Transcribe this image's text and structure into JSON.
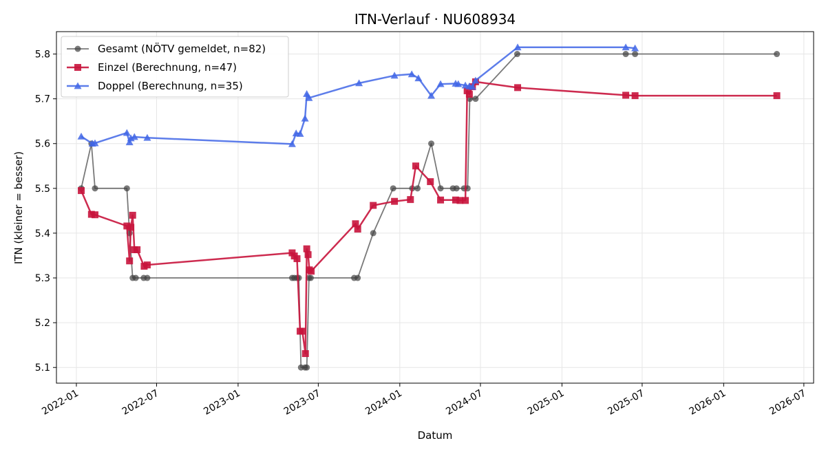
{
  "chart_data": {
    "type": "line",
    "title": "ITN-Verlauf · NU608934",
    "xlabel": "Datum",
    "ylabel": "ITN  (kleiner = besser)",
    "x_type": "date",
    "xlim": [
      "2021-11-17",
      "2026-07-23"
    ],
    "ylim": [
      5.065,
      5.85
    ],
    "x_ticks": [
      "2022-01",
      "2022-07",
      "2023-01",
      "2023-07",
      "2024-01",
      "2024-07",
      "2025-01",
      "2025-07",
      "2026-01",
      "2026-07"
    ],
    "y_ticks": [
      5.1,
      5.2,
      5.3,
      5.4,
      5.5,
      5.6,
      5.7,
      5.8
    ],
    "grid": true,
    "legend": "top-left",
    "series": [
      {
        "name": "Gesamt (NÖTV gemeldet, n=82)",
        "color": "#404040",
        "marker": "circle",
        "points": [
          [
            "2022-01-12",
            5.5
          ],
          [
            "2022-02-04",
            5.6
          ],
          [
            "2022-02-12",
            5.5
          ],
          [
            "2022-04-25",
            5.5
          ],
          [
            "2022-05-01",
            5.4
          ],
          [
            "2022-05-08",
            5.3
          ],
          [
            "2022-05-15",
            5.3
          ],
          [
            "2022-06-02",
            5.3
          ],
          [
            "2022-06-10",
            5.3
          ],
          [
            "2023-05-03",
            5.3
          ],
          [
            "2023-05-08",
            5.3
          ],
          [
            "2023-05-14",
            5.3
          ],
          [
            "2023-05-18",
            5.3
          ],
          [
            "2023-05-23",
            5.1
          ],
          [
            "2023-06-01",
            5.1
          ],
          [
            "2023-06-05",
            5.1
          ],
          [
            "2023-06-10",
            5.3
          ],
          [
            "2023-06-14",
            5.3
          ],
          [
            "2023-09-20",
            5.3
          ],
          [
            "2023-09-28",
            5.3
          ],
          [
            "2023-11-02",
            5.4
          ],
          [
            "2023-12-17",
            5.5
          ],
          [
            "2024-01-29",
            5.5
          ],
          [
            "2024-02-10",
            5.5
          ],
          [
            "2024-03-12",
            5.6
          ],
          [
            "2024-04-02",
            5.5
          ],
          [
            "2024-04-30",
            5.5
          ],
          [
            "2024-05-08",
            5.5
          ],
          [
            "2024-05-25",
            5.5
          ],
          [
            "2024-06-02",
            5.5
          ],
          [
            "2024-06-07",
            5.7
          ],
          [
            "2024-06-20",
            5.7
          ],
          [
            "2024-09-22",
            5.8
          ],
          [
            "2025-05-25",
            5.8
          ],
          [
            "2025-06-15",
            5.8
          ],
          [
            "2026-05-01",
            5.8
          ]
        ]
      },
      {
        "name": "Einzel (Berechnung, n=47)",
        "color": "#c8143c",
        "marker": "square",
        "points": [
          [
            "2022-01-12",
            5.495
          ],
          [
            "2022-02-04",
            5.442
          ],
          [
            "2022-02-12",
            5.441
          ],
          [
            "2022-04-25",
            5.416
          ],
          [
            "2022-05-01",
            5.338
          ],
          [
            "2022-05-04",
            5.413
          ],
          [
            "2022-05-08",
            5.44
          ],
          [
            "2022-05-12",
            5.363
          ],
          [
            "2022-05-18",
            5.363
          ],
          [
            "2022-06-03",
            5.326
          ],
          [
            "2022-06-10",
            5.329
          ],
          [
            "2023-05-03",
            5.356
          ],
          [
            "2023-05-08",
            5.349
          ],
          [
            "2023-05-14",
            5.343
          ],
          [
            "2023-05-21",
            5.181
          ],
          [
            "2023-05-26",
            5.181
          ],
          [
            "2023-06-02",
            5.131
          ],
          [
            "2023-06-05",
            5.365
          ],
          [
            "2023-06-08",
            5.352
          ],
          [
            "2023-06-11",
            5.318
          ],
          [
            "2023-06-15",
            5.315
          ],
          [
            "2023-09-23",
            5.421
          ],
          [
            "2023-09-28",
            5.409
          ],
          [
            "2023-11-02",
            5.462
          ],
          [
            "2023-12-20",
            5.471
          ],
          [
            "2024-01-25",
            5.475
          ],
          [
            "2024-02-06",
            5.55
          ],
          [
            "2024-03-10",
            5.515
          ],
          [
            "2024-04-02",
            5.474
          ],
          [
            "2024-05-06",
            5.474
          ],
          [
            "2024-05-16",
            5.473
          ],
          [
            "2024-05-28",
            5.473
          ],
          [
            "2024-06-01",
            5.718
          ],
          [
            "2024-06-06",
            5.71
          ],
          [
            "2024-06-13",
            5.727
          ],
          [
            "2024-06-20",
            5.738
          ],
          [
            "2024-09-23",
            5.725
          ],
          [
            "2025-05-25",
            5.708
          ],
          [
            "2025-06-15",
            5.707
          ],
          [
            "2026-05-01",
            5.707
          ]
        ]
      },
      {
        "name": "Doppel (Berechnung, n=35)",
        "color": "#4166e6",
        "marker": "triangle",
        "points": [
          [
            "2022-01-12",
            5.616
          ],
          [
            "2022-02-06",
            5.6
          ],
          [
            "2022-02-12",
            5.601
          ],
          [
            "2022-04-25",
            5.624
          ],
          [
            "2022-05-01",
            5.603
          ],
          [
            "2022-05-04",
            5.612
          ],
          [
            "2022-05-12",
            5.615
          ],
          [
            "2022-06-10",
            5.613
          ],
          [
            "2023-05-03",
            5.599
          ],
          [
            "2023-05-12",
            5.623
          ],
          [
            "2023-05-21",
            5.622
          ],
          [
            "2023-06-01",
            5.656
          ],
          [
            "2023-06-05",
            5.711
          ],
          [
            "2023-06-10",
            5.702
          ],
          [
            "2023-10-01",
            5.735
          ],
          [
            "2023-12-20",
            5.752
          ],
          [
            "2024-01-28",
            5.755
          ],
          [
            "2024-02-12",
            5.746
          ],
          [
            "2024-03-12",
            5.707
          ],
          [
            "2024-04-02",
            5.733
          ],
          [
            "2024-05-06",
            5.734
          ],
          [
            "2024-05-12",
            5.733
          ],
          [
            "2024-05-28",
            5.73
          ],
          [
            "2024-06-06",
            5.728
          ],
          [
            "2024-06-13",
            5.727
          ],
          [
            "2024-06-20",
            5.741
          ],
          [
            "2024-09-23",
            5.815
          ],
          [
            "2025-05-25",
            5.815
          ],
          [
            "2025-06-15",
            5.813
          ]
        ]
      }
    ]
  }
}
